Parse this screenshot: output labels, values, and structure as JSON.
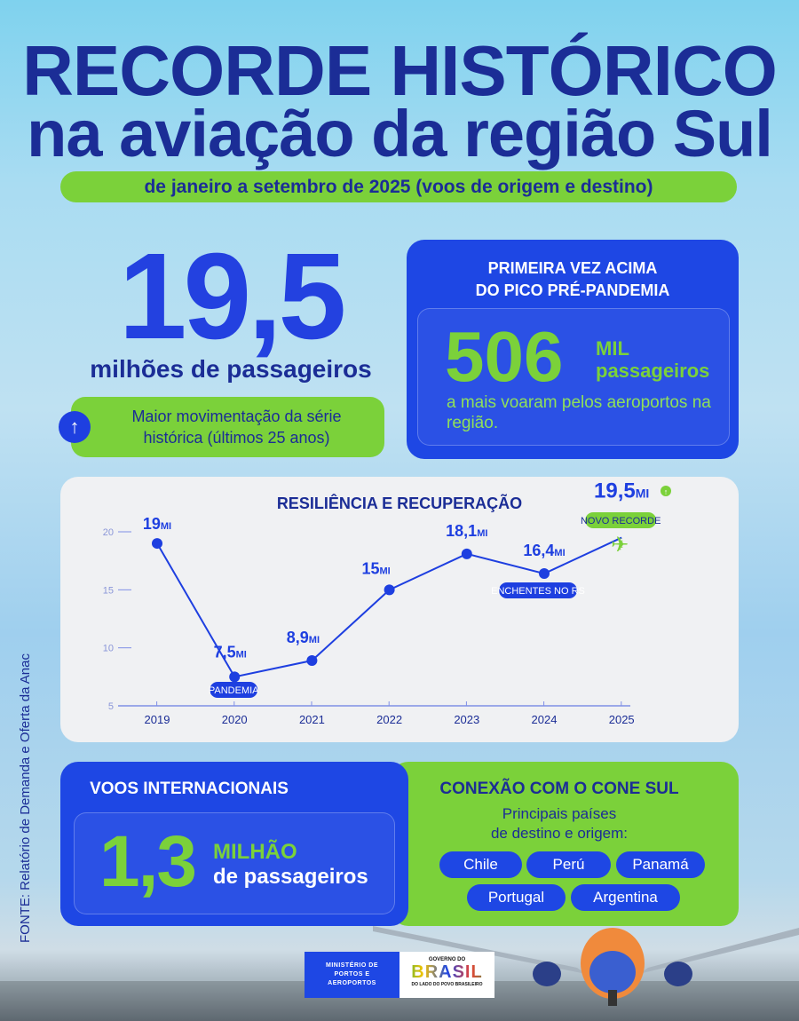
{
  "header": {
    "title_line1": "RECORDE HISTÓRICO",
    "title_line2": "na aviação da região Sul",
    "subtitle": "de janeiro a setembro de 2025 (voos de origem e destino)"
  },
  "highlight": {
    "value": "19,5",
    "label": "milhões de passageiros",
    "note": "Maior movimentação da série histórica (últimos 25 anos)",
    "icon": "arrow-up-icon"
  },
  "pre_pandemic": {
    "title_line1": "PRIMEIRA VEZ ACIMA",
    "title_line2": "DO PICO PRÉ-PANDEMIA",
    "value": "506",
    "unit_line1": "MIL",
    "unit_line2": "passageiros",
    "description": "a mais voaram pelos aeroportos na região."
  },
  "chart_data": {
    "type": "line",
    "title": "RESILIÊNCIA E RECUPERAÇÃO",
    "categories": [
      "2019",
      "2020",
      "2021",
      "2022",
      "2023",
      "2024",
      "2025"
    ],
    "values": [
      19,
      7.5,
      8.9,
      15,
      18.1,
      16.4,
      19.5
    ],
    "data_labels": [
      "19",
      "7,5",
      "8,9",
      "15",
      "18,1",
      "16,4",
      "19,5"
    ],
    "data_label_unit": "MI",
    "yticks": [
      "20",
      "15",
      "10",
      "5"
    ],
    "ylim": [
      5,
      20
    ],
    "annotations": {
      "pandemic": "PANDEMIA",
      "floods": "ENCHENTES NO RS",
      "record": "NOVO RECORDE"
    },
    "colors": {
      "line": "#1e3fe0",
      "record": "#7bd13a"
    }
  },
  "international": {
    "title": "VOOS INTERNACIONAIS",
    "value": "1,3",
    "unit_line1": "MILHÃO",
    "unit_line2": "de passageiros"
  },
  "cone_sul": {
    "title": "CONEXÃO COM O CONE SUL",
    "subtitle_line1": "Principais países",
    "subtitle_line2": "de destino e origem:",
    "countries": [
      "Chile",
      "Perú",
      "Panamá",
      "Portugal",
      "Argentina"
    ]
  },
  "source": "FONTE: Relatório de Demanda e Oferta da Anac",
  "logos": {
    "ministry": "MINISTÉRIO DE PORTOS E AEROPORTOS",
    "gov_top": "GOVERNO DO",
    "gov_main": "BRASIL",
    "gov_bottom": "DO LADO DO POVO BRASILEIRO"
  }
}
